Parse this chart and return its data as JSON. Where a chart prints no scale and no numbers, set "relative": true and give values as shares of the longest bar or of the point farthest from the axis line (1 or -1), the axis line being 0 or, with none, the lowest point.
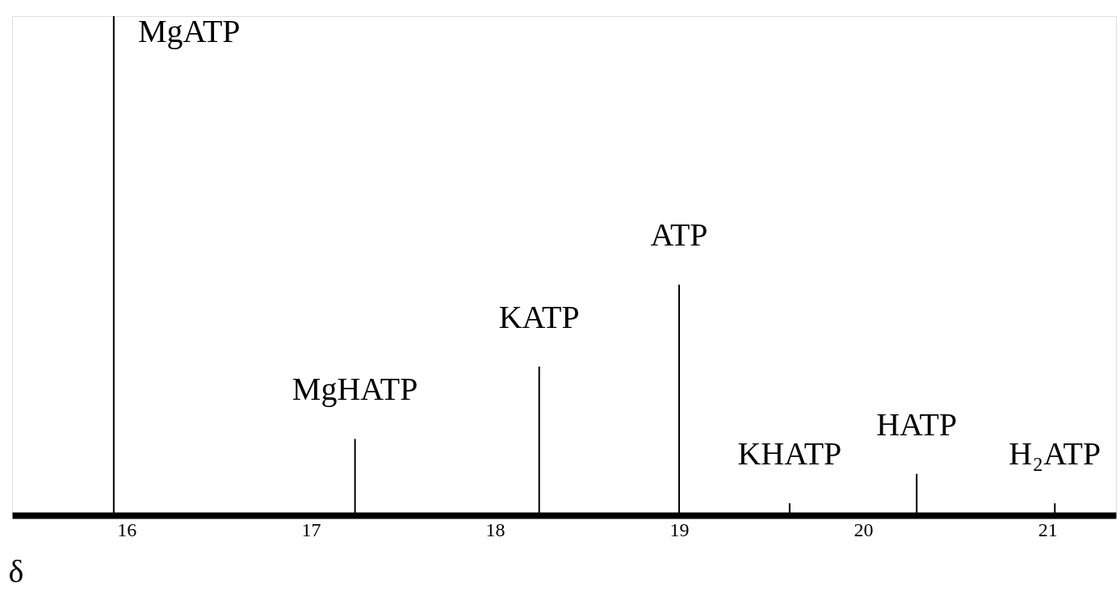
{
  "chart_data": {
    "type": "bar",
    "relative": true,
    "xlabel": "δ",
    "x": [
      15.93,
      17.24,
      18.24,
      19.0,
      19.6,
      20.29,
      21.04
    ],
    "values": [
      1,
      0.153,
      0.298,
      0.462,
      0.024,
      0.083,
      0.024
    ],
    "color": "#000000",
    "xlim": [
      15.4,
      21.35
    ],
    "xticks": [
      16,
      17,
      18,
      19,
      20,
      21
    ],
    "grid": false,
    "annotations": [
      {
        "text": "MgATP",
        "x": 15.93,
        "y": 1
      },
      {
        "text": "MgHATP",
        "x": 17.24,
        "y": 0.153
      },
      {
        "text": "KATP",
        "x": 18.24,
        "y": 0.298
      },
      {
        "text": "ATP",
        "x": 19.0,
        "y": 0.462
      },
      {
        "text": "KHATP",
        "x": 19.6,
        "y": 0.024
      },
      {
        "text": "HATP",
        "x": 20.29,
        "y": 0.083
      },
      {
        "text": "H₂ATP",
        "x": 21.04,
        "y": 0.024
      }
    ]
  }
}
